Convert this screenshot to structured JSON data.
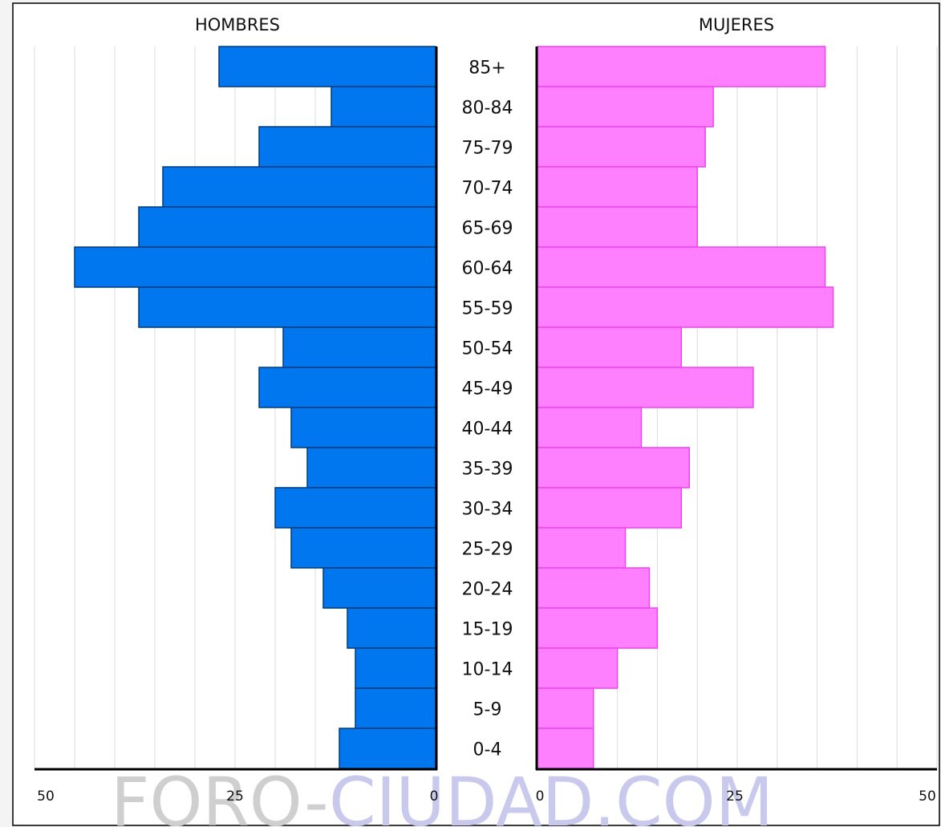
{
  "watermark": {
    "part1": "FORO-",
    "part2": "CIUDAD.COM",
    "color1": "#cfcfcf",
    "color2": "#c9c9ee"
  },
  "chart_data": {
    "type": "bar",
    "orientation": "horizontal-population-pyramid",
    "categories": [
      "85+",
      "80-84",
      "75-79",
      "70-74",
      "65-69",
      "60-64",
      "55-59",
      "50-54",
      "45-49",
      "40-44",
      "35-39",
      "30-34",
      "25-29",
      "20-24",
      "15-19",
      "10-14",
      "5-9",
      "0-4"
    ],
    "series": [
      {
        "name": "HOMBRES",
        "side": "left",
        "color": "#0077ee",
        "values": [
          27,
          13,
          22,
          34,
          37,
          45,
          37,
          19,
          22,
          18,
          16,
          20,
          18,
          14,
          11,
          10,
          10,
          12
        ]
      },
      {
        "name": "MUJERES",
        "side": "right",
        "color": "#ff80ff",
        "values": [
          36,
          22,
          21,
          20,
          20,
          36,
          37,
          18,
          27,
          13,
          19,
          18,
          11,
          14,
          15,
          10,
          7,
          7
        ]
      }
    ],
    "left_axis": {
      "range": [
        0,
        50
      ],
      "ticks": [
        "50",
        "25",
        "0"
      ]
    },
    "right_axis": {
      "range": [
        0,
        50
      ],
      "ticks": [
        "0",
        "25",
        "50"
      ]
    },
    "grid": true,
    "grid_step": 5
  }
}
